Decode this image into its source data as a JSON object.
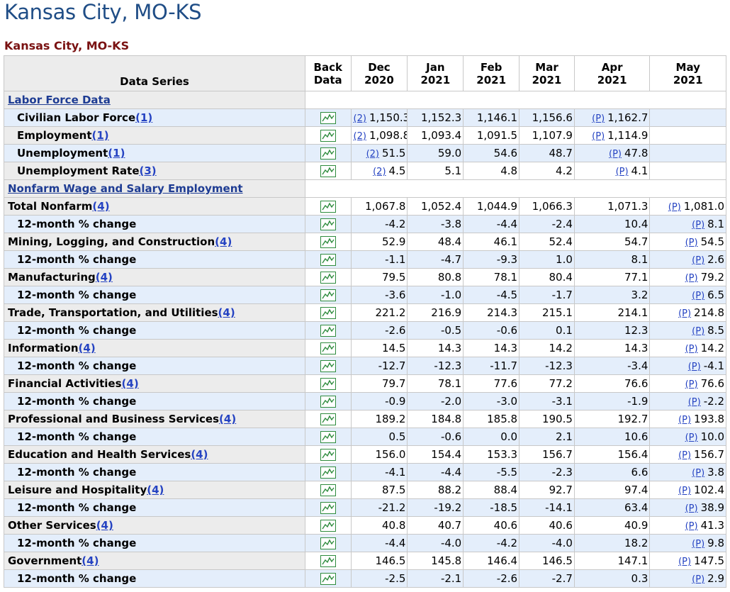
{
  "page_title": "Kansas City, MO-KS",
  "sub_title": "Kansas City, MO-KS",
  "headers": {
    "series": "Data Series",
    "back_line1": "Back",
    "back_line2": "Data",
    "months": [
      {
        "m": "Dec",
        "y": "2020"
      },
      {
        "m": "Jan",
        "y": "2021"
      },
      {
        "m": "Feb",
        "y": "2021"
      },
      {
        "m": "Mar",
        "y": "2021"
      },
      {
        "m": "Apr",
        "y": "2021"
      },
      {
        "m": "May",
        "y": "2021"
      }
    ]
  },
  "sections": [
    {
      "title": "Labor Force Data",
      "rows": [
        {
          "label": "Civilian Labor Force",
          "fn": "(1)",
          "indent": 1,
          "shade": true,
          "cells": [
            {
              "p": "(2)",
              "v": "1,150.3"
            },
            {
              "v": "1,152.3"
            },
            {
              "v": "1,146.1"
            },
            {
              "v": "1,156.6"
            },
            {
              "p": "(P)",
              "v": "1,162.7"
            },
            {
              "v": ""
            }
          ]
        },
        {
          "label": "Employment",
          "fn": "(1)",
          "indent": 1,
          "shade": false,
          "cells": [
            {
              "p": "(2)",
              "v": "1,098.8"
            },
            {
              "v": "1,093.4"
            },
            {
              "v": "1,091.5"
            },
            {
              "v": "1,107.9"
            },
            {
              "p": "(P)",
              "v": "1,114.9"
            },
            {
              "v": ""
            }
          ]
        },
        {
          "label": "Unemployment",
          "fn": "(1)",
          "indent": 1,
          "shade": true,
          "cells": [
            {
              "p": "(2)",
              "v": "51.5"
            },
            {
              "v": "59.0"
            },
            {
              "v": "54.6"
            },
            {
              "v": "48.7"
            },
            {
              "p": "(P)",
              "v": "47.8"
            },
            {
              "v": ""
            }
          ]
        },
        {
          "label": "Unemployment Rate",
          "fn": "(3)",
          "indent": 1,
          "shade": false,
          "cells": [
            {
              "p": "(2)",
              "v": "4.5"
            },
            {
              "v": "5.1"
            },
            {
              "v": "4.8"
            },
            {
              "v": "4.2"
            },
            {
              "p": "(P)",
              "v": "4.1"
            },
            {
              "v": ""
            }
          ]
        }
      ]
    },
    {
      "title": "Nonfarm Wage and Salary Employment",
      "rows": [
        {
          "label": "Total Nonfarm",
          "fn": "(4)",
          "indent": 0,
          "shade": false,
          "cells": [
            {
              "v": "1,067.8"
            },
            {
              "v": "1,052.4"
            },
            {
              "v": "1,044.9"
            },
            {
              "v": "1,066.3"
            },
            {
              "v": "1,071.3"
            },
            {
              "p": "(P)",
              "v": "1,081.0"
            }
          ]
        },
        {
          "label": "12-month % change",
          "fn": "",
          "indent": 1,
          "shade": true,
          "cells": [
            {
              "v": "-4.2"
            },
            {
              "v": "-3.8"
            },
            {
              "v": "-4.4"
            },
            {
              "v": "-2.4"
            },
            {
              "v": "10.4"
            },
            {
              "p": "(P)",
              "v": "8.1"
            }
          ]
        },
        {
          "label": "Mining, Logging, and Construction",
          "fn": "(4)",
          "indent": 0,
          "shade": false,
          "cells": [
            {
              "v": "52.9"
            },
            {
              "v": "48.4"
            },
            {
              "v": "46.1"
            },
            {
              "v": "52.4"
            },
            {
              "v": "54.7"
            },
            {
              "p": "(P)",
              "v": "54.5"
            }
          ]
        },
        {
          "label": "12-month % change",
          "fn": "",
          "indent": 1,
          "shade": true,
          "cells": [
            {
              "v": "-1.1"
            },
            {
              "v": "-4.7"
            },
            {
              "v": "-9.3"
            },
            {
              "v": "1.0"
            },
            {
              "v": "8.1"
            },
            {
              "p": "(P)",
              "v": "2.6"
            }
          ]
        },
        {
          "label": "Manufacturing",
          "fn": "(4)",
          "indent": 0,
          "shade": false,
          "cells": [
            {
              "v": "79.5"
            },
            {
              "v": "80.8"
            },
            {
              "v": "78.1"
            },
            {
              "v": "80.4"
            },
            {
              "v": "77.1"
            },
            {
              "p": "(P)",
              "v": "79.2"
            }
          ]
        },
        {
          "label": "12-month % change",
          "fn": "",
          "indent": 1,
          "shade": true,
          "cells": [
            {
              "v": "-3.6"
            },
            {
              "v": "-1.0"
            },
            {
              "v": "-4.5"
            },
            {
              "v": "-1.7"
            },
            {
              "v": "3.2"
            },
            {
              "p": "(P)",
              "v": "6.5"
            }
          ]
        },
        {
          "label": "Trade, Transportation, and Utilities",
          "fn": "(4)",
          "indent": 0,
          "shade": false,
          "cells": [
            {
              "v": "221.2"
            },
            {
              "v": "216.9"
            },
            {
              "v": "214.3"
            },
            {
              "v": "215.1"
            },
            {
              "v": "214.1"
            },
            {
              "p": "(P)",
              "v": "214.8"
            }
          ]
        },
        {
          "label": "12-month % change",
          "fn": "",
          "indent": 1,
          "shade": true,
          "cells": [
            {
              "v": "-2.6"
            },
            {
              "v": "-0.5"
            },
            {
              "v": "-0.6"
            },
            {
              "v": "0.1"
            },
            {
              "v": "12.3"
            },
            {
              "p": "(P)",
              "v": "8.5"
            }
          ]
        },
        {
          "label": "Information",
          "fn": "(4)",
          "indent": 0,
          "shade": false,
          "cells": [
            {
              "v": "14.5"
            },
            {
              "v": "14.3"
            },
            {
              "v": "14.3"
            },
            {
              "v": "14.2"
            },
            {
              "v": "14.3"
            },
            {
              "p": "(P)",
              "v": "14.2"
            }
          ]
        },
        {
          "label": "12-month % change",
          "fn": "",
          "indent": 1,
          "shade": true,
          "cells": [
            {
              "v": "-12.7"
            },
            {
              "v": "-12.3"
            },
            {
              "v": "-11.7"
            },
            {
              "v": "-12.3"
            },
            {
              "v": "-3.4"
            },
            {
              "p": "(P)",
              "v": "-4.1"
            }
          ]
        },
        {
          "label": "Financial Activities",
          "fn": "(4)",
          "indent": 0,
          "shade": false,
          "cells": [
            {
              "v": "79.7"
            },
            {
              "v": "78.1"
            },
            {
              "v": "77.6"
            },
            {
              "v": "77.2"
            },
            {
              "v": "76.6"
            },
            {
              "p": "(P)",
              "v": "76.6"
            }
          ]
        },
        {
          "label": "12-month % change",
          "fn": "",
          "indent": 1,
          "shade": true,
          "cells": [
            {
              "v": "-0.9"
            },
            {
              "v": "-2.0"
            },
            {
              "v": "-3.0"
            },
            {
              "v": "-3.1"
            },
            {
              "v": "-1.9"
            },
            {
              "p": "(P)",
              "v": "-2.2"
            }
          ]
        },
        {
          "label": "Professional and Business Services",
          "fn": "(4)",
          "indent": 0,
          "shade": false,
          "cells": [
            {
              "v": "189.2"
            },
            {
              "v": "184.8"
            },
            {
              "v": "185.8"
            },
            {
              "v": "190.5"
            },
            {
              "v": "192.7"
            },
            {
              "p": "(P)",
              "v": "193.8"
            }
          ]
        },
        {
          "label": "12-month % change",
          "fn": "",
          "indent": 1,
          "shade": true,
          "cells": [
            {
              "v": "0.5"
            },
            {
              "v": "-0.6"
            },
            {
              "v": "0.0"
            },
            {
              "v": "2.1"
            },
            {
              "v": "10.6"
            },
            {
              "p": "(P)",
              "v": "10.0"
            }
          ]
        },
        {
          "label": "Education and Health Services",
          "fn": "(4)",
          "indent": 0,
          "shade": false,
          "cells": [
            {
              "v": "156.0"
            },
            {
              "v": "154.4"
            },
            {
              "v": "153.3"
            },
            {
              "v": "156.7"
            },
            {
              "v": "156.4"
            },
            {
              "p": "(P)",
              "v": "156.7"
            }
          ]
        },
        {
          "label": "12-month % change",
          "fn": "",
          "indent": 1,
          "shade": true,
          "cells": [
            {
              "v": "-4.1"
            },
            {
              "v": "-4.4"
            },
            {
              "v": "-5.5"
            },
            {
              "v": "-2.3"
            },
            {
              "v": "6.6"
            },
            {
              "p": "(P)",
              "v": "3.8"
            }
          ]
        },
        {
          "label": "Leisure and Hospitality",
          "fn": "(4)",
          "indent": 0,
          "shade": false,
          "cells": [
            {
              "v": "87.5"
            },
            {
              "v": "88.2"
            },
            {
              "v": "88.4"
            },
            {
              "v": "92.7"
            },
            {
              "v": "97.4"
            },
            {
              "p": "(P)",
              "v": "102.4"
            }
          ]
        },
        {
          "label": "12-month % change",
          "fn": "",
          "indent": 1,
          "shade": true,
          "cells": [
            {
              "v": "-21.2"
            },
            {
              "v": "-19.2"
            },
            {
              "v": "-18.5"
            },
            {
              "v": "-14.1"
            },
            {
              "v": "63.4"
            },
            {
              "p": "(P)",
              "v": "38.9"
            }
          ]
        },
        {
          "label": "Other Services",
          "fn": "(4)",
          "indent": 0,
          "shade": false,
          "cells": [
            {
              "v": "40.8"
            },
            {
              "v": "40.7"
            },
            {
              "v": "40.6"
            },
            {
              "v": "40.6"
            },
            {
              "v": "40.9"
            },
            {
              "p": "(P)",
              "v": "41.3"
            }
          ]
        },
        {
          "label": "12-month % change",
          "fn": "",
          "indent": 1,
          "shade": true,
          "cells": [
            {
              "v": "-4.4"
            },
            {
              "v": "-4.0"
            },
            {
              "v": "-4.2"
            },
            {
              "v": "-4.0"
            },
            {
              "v": "18.2"
            },
            {
              "p": "(P)",
              "v": "9.8"
            }
          ]
        },
        {
          "label": "Government",
          "fn": "(4)",
          "indent": 0,
          "shade": false,
          "cells": [
            {
              "v": "146.5"
            },
            {
              "v": "145.8"
            },
            {
              "v": "146.4"
            },
            {
              "v": "146.5"
            },
            {
              "v": "147.1"
            },
            {
              "p": "(P)",
              "v": "147.5"
            }
          ]
        },
        {
          "label": "12-month % change",
          "fn": "",
          "indent": 1,
          "shade": true,
          "cells": [
            {
              "v": "-2.5"
            },
            {
              "v": "-2.1"
            },
            {
              "v": "-2.6"
            },
            {
              "v": "-2.7"
            },
            {
              "v": "0.3"
            },
            {
              "p": "(P)",
              "v": "2.9"
            }
          ]
        }
      ]
    }
  ],
  "icons": {
    "back_data": "chart-icon"
  },
  "colors": {
    "title": "#1f4d86",
    "subtitle": "#7a1212",
    "link": "#1e3c93",
    "row_shade": "#e4eefb",
    "label_bg": "#ececec",
    "icon_green": "#2e8b3d"
  }
}
